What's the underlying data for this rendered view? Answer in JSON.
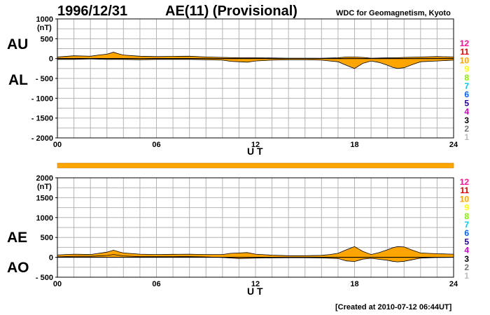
{
  "title": {
    "date": "1996/12/31",
    "main": "AE(11) (Provisional)",
    "source": "WDC for Geomagnetism, Kyoto"
  },
  "created": "[Created at 2010-07-12 06:44UT]",
  "colors": {
    "fill": "#FFA500",
    "grid": "#b4b4b4",
    "axis": "#000000",
    "station_bar": "#FFA500"
  },
  "counts": [
    {
      "label": "12",
      "color": "#ff1493"
    },
    {
      "label": "11",
      "color": "#dd0000"
    },
    {
      "label": "10",
      "color": "#ffa500"
    },
    {
      "label": "9",
      "color": "#ffff00"
    },
    {
      "label": "8",
      "color": "#88ee00"
    },
    {
      "label": "7",
      "color": "#00ccee"
    },
    {
      "label": "6",
      "color": "#0066ff"
    },
    {
      "label": "5",
      "color": "#220099"
    },
    {
      "label": "4",
      "color": "#cc00cc"
    },
    {
      "label": "3",
      "color": "#000000"
    },
    {
      "label": "2",
      "color": "#777777"
    },
    {
      "label": "1",
      "color": "#bbbbbb"
    }
  ],
  "station_count_bar": {
    "value": 11,
    "hours": [
      0,
      24
    ]
  },
  "chart_data": [
    {
      "type": "area",
      "upper_label": "AU",
      "lower_label": "AL",
      "unit": "(nT)",
      "xlabel": "U T",
      "xlim": [
        0,
        24
      ],
      "ylim": [
        -2000,
        1000
      ],
      "yticks": [
        1000,
        500,
        0,
        -500,
        -1000,
        -1500,
        -2000
      ],
      "ytick_labels": [
        "1000",
        "500",
        "0",
        "- 500",
        "- 1000",
        "- 1500",
        "- 2000"
      ],
      "xticks": [
        0,
        6,
        12,
        18,
        24
      ],
      "xtick_labels": [
        "00",
        "06",
        "12",
        "18",
        "24"
      ],
      "grid": true,
      "series": [
        {
          "name": "AU",
          "x": [
            0,
            1,
            2,
            2.5,
            3,
            3.4,
            3.7,
            4,
            5,
            6,
            7,
            8,
            9,
            10,
            11,
            12,
            13,
            14,
            15,
            16,
            17,
            17.5,
            18,
            18.5,
            19,
            20,
            20.5,
            21,
            22,
            23,
            24
          ],
          "values": [
            40,
            70,
            60,
            90,
            110,
            160,
            120,
            90,
            60,
            50,
            55,
            60,
            40,
            30,
            20,
            20,
            15,
            10,
            10,
            10,
            20,
            40,
            40,
            30,
            10,
            20,
            20,
            30,
            40,
            50,
            40
          ]
        },
        {
          "name": "AL",
          "x": [
            0,
            1,
            2,
            3,
            4,
            5,
            6,
            7,
            8,
            9,
            10,
            10.5,
            11,
            11.5,
            12,
            12.5,
            13,
            14,
            15,
            16,
            16.5,
            17,
            17.4,
            17.8,
            18,
            18.5,
            19,
            19.5,
            20,
            20.3,
            20.6,
            21,
            21.5,
            22,
            23,
            24
          ],
          "values": [
            -20,
            -20,
            -10,
            -20,
            -20,
            -30,
            -20,
            -20,
            -20,
            -30,
            -40,
            -70,
            -80,
            -90,
            -60,
            -50,
            -40,
            -30,
            -30,
            -40,
            -60,
            -80,
            -150,
            -220,
            -250,
            -120,
            -60,
            -100,
            -170,
            -220,
            -250,
            -230,
            -150,
            -80,
            -60,
            -40
          ]
        }
      ]
    },
    {
      "type": "area",
      "upper_label": "AE",
      "lower_label": "AO",
      "unit": "(nT)",
      "xlabel": "U T",
      "xlim": [
        0,
        24
      ],
      "ylim": [
        -500,
        2000
      ],
      "yticks": [
        2000,
        1500,
        1000,
        500,
        0,
        -500
      ],
      "ytick_labels": [
        "2000",
        "1500",
        "1000",
        "500",
        "0",
        "- 500"
      ],
      "xticks": [
        0,
        6,
        12,
        18,
        24
      ],
      "xtick_labels": [
        "00",
        "06",
        "12",
        "18",
        "24"
      ],
      "grid": true,
      "series": [
        {
          "name": "AE",
          "x": [
            0,
            1,
            2,
            2.5,
            3,
            3.4,
            3.7,
            4,
            5,
            6,
            7,
            8,
            9,
            10,
            10.5,
            11,
            11.5,
            12,
            13,
            14,
            15,
            16,
            16.5,
            17,
            17.4,
            17.8,
            18,
            18.5,
            19,
            19.5,
            20,
            20.3,
            20.6,
            21,
            21.5,
            22,
            23,
            24
          ],
          "values": [
            60,
            80,
            70,
            100,
            130,
            180,
            140,
            110,
            80,
            70,
            75,
            80,
            70,
            70,
            100,
            110,
            120,
            80,
            55,
            40,
            40,
            50,
            70,
            100,
            170,
            240,
            270,
            150,
            70,
            120,
            190,
            240,
            270,
            260,
            180,
            110,
            90,
            80
          ]
        },
        {
          "name": "AO",
          "x": [
            0,
            1,
            2,
            3,
            3.4,
            4,
            5,
            6,
            7,
            8,
            9,
            10,
            11,
            12,
            13,
            14,
            15,
            16,
            17,
            17.5,
            18,
            18.5,
            19,
            20,
            20.3,
            20.6,
            21,
            22,
            23,
            24
          ],
          "values": [
            10,
            25,
            25,
            45,
            70,
            35,
            15,
            15,
            18,
            20,
            10,
            -5,
            -30,
            -20,
            -12,
            -10,
            -10,
            -15,
            -30,
            -90,
            -105,
            -45,
            -25,
            -75,
            -100,
            -115,
            -100,
            -20,
            -5,
            0
          ]
        }
      ]
    }
  ]
}
